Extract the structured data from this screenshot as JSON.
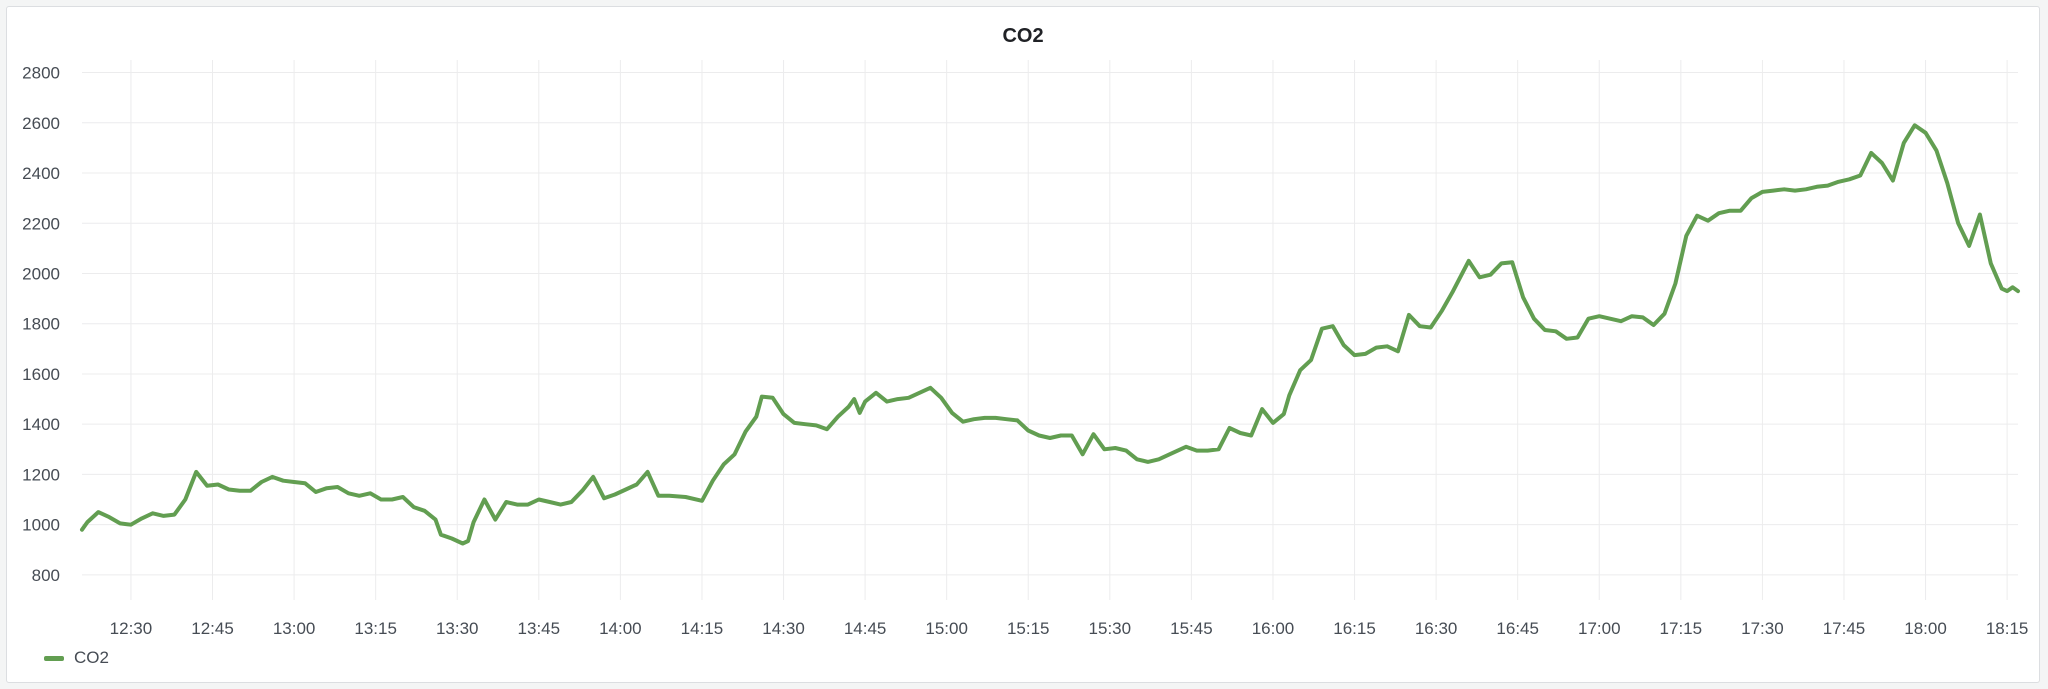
{
  "panel": {
    "title": "CO2"
  },
  "chart_data": {
    "type": "line",
    "title": "CO2",
    "xlabel": "",
    "ylabel": "",
    "ylim": [
      700,
      2850
    ],
    "x_range": [
      "12:21",
      "18:17"
    ],
    "grid": true,
    "legend_position": "bottom-left",
    "y_ticks": [
      "800",
      "1000",
      "1200",
      "1400",
      "1600",
      "1800",
      "2000",
      "2200",
      "2400",
      "2600",
      "2800"
    ],
    "x_ticks": [
      "12:30",
      "12:45",
      "13:00",
      "13:15",
      "13:30",
      "13:45",
      "14:00",
      "14:15",
      "14:30",
      "14:45",
      "15:00",
      "15:15",
      "15:30",
      "15:45",
      "16:00",
      "16:15",
      "16:30",
      "16:45",
      "17:00",
      "17:15",
      "17:30",
      "17:45",
      "18:00",
      "18:15"
    ],
    "series": [
      {
        "name": "CO2",
        "color": "#629e51",
        "points": [
          [
            "12:21",
            980
          ],
          [
            "12:22",
            1010
          ],
          [
            "12:24",
            1050
          ],
          [
            "12:26",
            1030
          ],
          [
            "12:28",
            1005
          ],
          [
            "12:30",
            1000
          ],
          [
            "12:32",
            1025
          ],
          [
            "12:34",
            1045
          ],
          [
            "12:36",
            1035
          ],
          [
            "12:38",
            1040
          ],
          [
            "12:40",
            1100
          ],
          [
            "12:42",
            1210
          ],
          [
            "12:44",
            1155
          ],
          [
            "12:46",
            1160
          ],
          [
            "12:48",
            1140
          ],
          [
            "12:50",
            1135
          ],
          [
            "12:52",
            1135
          ],
          [
            "12:54",
            1170
          ],
          [
            "12:56",
            1190
          ],
          [
            "12:58",
            1175
          ],
          [
            "13:00",
            1170
          ],
          [
            "13:02",
            1165
          ],
          [
            "13:04",
            1130
          ],
          [
            "13:06",
            1145
          ],
          [
            "13:08",
            1150
          ],
          [
            "13:10",
            1125
          ],
          [
            "13:12",
            1115
          ],
          [
            "13:14",
            1125
          ],
          [
            "13:16",
            1100
          ],
          [
            "13:18",
            1100
          ],
          [
            "13:20",
            1110
          ],
          [
            "13:22",
            1070
          ],
          [
            "13:24",
            1055
          ],
          [
            "13:26",
            1020
          ],
          [
            "13:27",
            960
          ],
          [
            "13:29",
            945
          ],
          [
            "13:31",
            925
          ],
          [
            "13:32",
            935
          ],
          [
            "13:33",
            1010
          ],
          [
            "13:35",
            1100
          ],
          [
            "13:37",
            1020
          ],
          [
            "13:39",
            1090
          ],
          [
            "13:41",
            1080
          ],
          [
            "13:43",
            1080
          ],
          [
            "13:45",
            1100
          ],
          [
            "13:47",
            1090
          ],
          [
            "13:49",
            1080
          ],
          [
            "13:51",
            1090
          ],
          [
            "13:53",
            1135
          ],
          [
            "13:55",
            1190
          ],
          [
            "13:57",
            1105
          ],
          [
            "13:59",
            1120
          ],
          [
            "14:01",
            1140
          ],
          [
            "14:03",
            1160
          ],
          [
            "14:05",
            1210
          ],
          [
            "14:07",
            1115
          ],
          [
            "14:09",
            1115
          ],
          [
            "14:12",
            1110
          ],
          [
            "14:15",
            1095
          ],
          [
            "14:17",
            1175
          ],
          [
            "14:19",
            1240
          ],
          [
            "14:21",
            1280
          ],
          [
            "14:23",
            1370
          ],
          [
            "14:25",
            1430
          ],
          [
            "14:26",
            1510
          ],
          [
            "14:28",
            1505
          ],
          [
            "14:30",
            1440
          ],
          [
            "14:32",
            1405
          ],
          [
            "14:34",
            1400
          ],
          [
            "14:36",
            1395
          ],
          [
            "14:38",
            1380
          ],
          [
            "14:40",
            1430
          ],
          [
            "14:42",
            1470
          ],
          [
            "14:43",
            1500
          ],
          [
            "14:44",
            1445
          ],
          [
            "14:45",
            1490
          ],
          [
            "14:47",
            1525
          ],
          [
            "14:49",
            1490
          ],
          [
            "14:51",
            1500
          ],
          [
            "14:53",
            1505
          ],
          [
            "14:55",
            1525
          ],
          [
            "14:57",
            1545
          ],
          [
            "14:59",
            1505
          ],
          [
            "15:01",
            1445
          ],
          [
            "15:03",
            1410
          ],
          [
            "15:05",
            1420
          ],
          [
            "15:07",
            1425
          ],
          [
            "15:09",
            1425
          ],
          [
            "15:11",
            1420
          ],
          [
            "15:13",
            1415
          ],
          [
            "15:15",
            1375
          ],
          [
            "15:17",
            1355
          ],
          [
            "15:19",
            1345
          ],
          [
            "15:21",
            1355
          ],
          [
            "15:23",
            1355
          ],
          [
            "15:25",
            1280
          ],
          [
            "15:27",
            1360
          ],
          [
            "15:29",
            1300
          ],
          [
            "15:31",
            1305
          ],
          [
            "15:33",
            1295
          ],
          [
            "15:35",
            1260
          ],
          [
            "15:37",
            1250
          ],
          [
            "15:39",
            1260
          ],
          [
            "15:41",
            1280
          ],
          [
            "15:44",
            1310
          ],
          [
            "15:46",
            1295
          ],
          [
            "15:48",
            1295
          ],
          [
            "15:50",
            1300
          ],
          [
            "15:52",
            1385
          ],
          [
            "15:54",
            1365
          ],
          [
            "15:56",
            1355
          ],
          [
            "15:58",
            1460
          ],
          [
            "16:00",
            1405
          ],
          [
            "16:02",
            1440
          ],
          [
            "16:03",
            1515
          ],
          [
            "16:05",
            1615
          ],
          [
            "16:07",
            1655
          ],
          [
            "16:09",
            1780
          ],
          [
            "16:11",
            1790
          ],
          [
            "16:13",
            1715
          ],
          [
            "16:15",
            1675
          ],
          [
            "16:17",
            1680
          ],
          [
            "16:19",
            1705
          ],
          [
            "16:21",
            1710
          ],
          [
            "16:23",
            1690
          ],
          [
            "16:25",
            1835
          ],
          [
            "16:27",
            1790
          ],
          [
            "16:29",
            1785
          ],
          [
            "16:31",
            1850
          ],
          [
            "16:33",
            1925
          ],
          [
            "16:36",
            2050
          ],
          [
            "16:38",
            1985
          ],
          [
            "16:40",
            1995
          ],
          [
            "16:42",
            2040
          ],
          [
            "16:44",
            2045
          ],
          [
            "16:46",
            1905
          ],
          [
            "16:48",
            1820
          ],
          [
            "16:50",
            1775
          ],
          [
            "16:52",
            1770
          ],
          [
            "16:54",
            1740
          ],
          [
            "16:56",
            1745
          ],
          [
            "16:58",
            1820
          ],
          [
            "17:00",
            1830
          ],
          [
            "17:02",
            1820
          ],
          [
            "17:04",
            1810
          ],
          [
            "17:06",
            1830
          ],
          [
            "17:08",
            1825
          ],
          [
            "17:10",
            1795
          ],
          [
            "17:12",
            1840
          ],
          [
            "17:14",
            1960
          ],
          [
            "17:16",
            2150
          ],
          [
            "17:18",
            2230
          ],
          [
            "17:20",
            2210
          ],
          [
            "17:22",
            2240
          ],
          [
            "17:24",
            2250
          ],
          [
            "17:26",
            2250
          ],
          [
            "17:28",
            2300
          ],
          [
            "17:30",
            2325
          ],
          [
            "17:32",
            2330
          ],
          [
            "17:34",
            2335
          ],
          [
            "17:36",
            2330
          ],
          [
            "17:38",
            2335
          ],
          [
            "17:40",
            2345
          ],
          [
            "17:42",
            2350
          ],
          [
            "17:44",
            2365
          ],
          [
            "17:46",
            2375
          ],
          [
            "17:48",
            2390
          ],
          [
            "17:50",
            2480
          ],
          [
            "17:52",
            2440
          ],
          [
            "17:54",
            2370
          ],
          [
            "17:56",
            2520
          ],
          [
            "17:58",
            2590
          ],
          [
            "18:00",
            2560
          ],
          [
            "18:02",
            2490
          ],
          [
            "18:04",
            2360
          ],
          [
            "18:06",
            2200
          ],
          [
            "18:08",
            2110
          ],
          [
            "18:10",
            2235
          ],
          [
            "18:12",
            2040
          ],
          [
            "18:14",
            1940
          ],
          [
            "18:15",
            1930
          ],
          [
            "18:16",
            1945
          ],
          [
            "18:17",
            1930
          ]
        ]
      }
    ]
  }
}
